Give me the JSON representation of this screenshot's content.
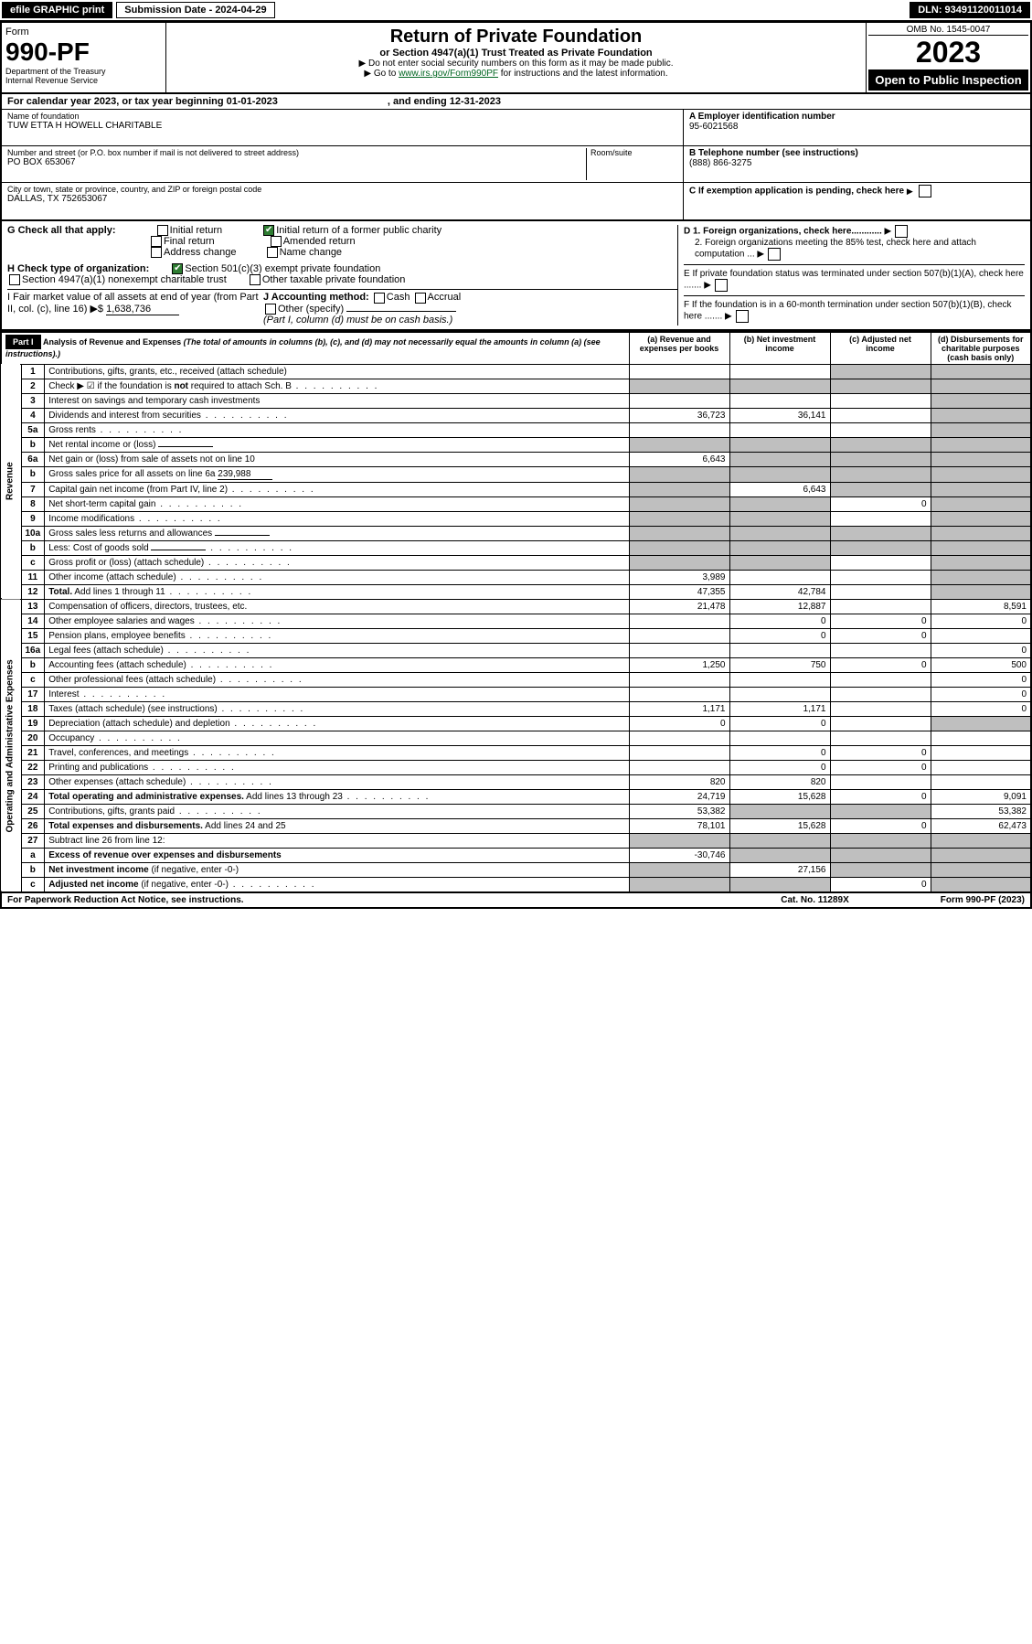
{
  "topbar": {
    "efile": "efile GRAPHIC print",
    "sub_lbl": "Submission Date - 2024-04-29",
    "dln": "DLN: 93491120011014"
  },
  "header": {
    "form_word": "Form",
    "form_no": "990-PF",
    "dept": "Department of the Treasury",
    "irs": "Internal Revenue Service",
    "title": "Return of Private Foundation",
    "subtitle": "or Section 4947(a)(1) Trust Treated as Private Foundation",
    "note1": "▶ Do not enter social security numbers on this form as it may be made public.",
    "note2_pre": "▶ Go to ",
    "note2_link": "www.irs.gov/Form990PF",
    "note2_post": " for instructions and the latest information.",
    "omb": "OMB No. 1545-0047",
    "year": "2023",
    "open": "Open to Public Inspection"
  },
  "calyear": {
    "text": "For calendar year 2023, or tax year beginning 01-01-2023",
    "ending": ", and ending 12-31-2023"
  },
  "idblock": {
    "name_lbl": "Name of foundation",
    "name": "TUW ETTA H HOWELL CHARITABLE",
    "addr_lbl": "Number and street (or P.O. box number if mail is not delivered to street address)",
    "addr": "PO BOX 653067",
    "room_lbl": "Room/suite",
    "city_lbl": "City or town, state or province, country, and ZIP or foreign postal code",
    "city": "DALLAS, TX  752653067",
    "a_lbl": "A Employer identification number",
    "a_val": "95-6021568",
    "b_lbl": "B Telephone number (see instructions)",
    "b_val": "(888) 866-3275",
    "c_lbl": "C If exemption application is pending, check here"
  },
  "checks": {
    "g_lbl": "G Check all that apply:",
    "g_opts": [
      "Initial return",
      "Initial return of a former public charity",
      "Final return",
      "Amended return",
      "Address change",
      "Name change"
    ],
    "h_lbl": "H Check type of organization:",
    "h1": "Section 501(c)(3) exempt private foundation",
    "h2": "Section 4947(a)(1) nonexempt charitable trust",
    "h3": "Other taxable private foundation",
    "i_lbl": "I Fair market value of all assets at end of year (from Part II, col. (c), line 16) ▶$",
    "i_val": "1,638,736",
    "j_lbl": "J Accounting method:",
    "j_opts": [
      "Cash",
      "Accrual"
    ],
    "j_other": "Other (specify)",
    "j_note": "(Part I, column (d) must be on cash basis.)",
    "d1": "D 1. Foreign organizations, check here............",
    "d2": "2. Foreign organizations meeting the 85% test, check here and attach computation ...",
    "e": "E  If private foundation status was terminated under section 507(b)(1)(A), check here .......",
    "f": "F  If the foundation is in a 60-month termination under section 507(b)(1)(B), check here .......",
    "arrow": "▶"
  },
  "part1": {
    "label": "Part I",
    "title": "Analysis of Revenue and Expenses",
    "title_note": " (The total of amounts in columns (b), (c), and (d) may not necessarily equal the amounts in column (a) (see instructions).)",
    "cols": {
      "a": "(a) Revenue and expenses per books",
      "b": "(b) Net investment income",
      "c": "(c) Adjusted net income",
      "d": "(d) Disbursements for charitable purposes (cash basis only)"
    }
  },
  "side": {
    "rev": "Revenue",
    "exp": "Operating and Administrative Expenses"
  },
  "rows": [
    {
      "n": "1",
      "t": "Contributions, gifts, grants, etc., received (attach schedule)",
      "a": "",
      "b": "",
      "c": "shade",
      "d": "shade"
    },
    {
      "n": "2",
      "t": "Check ▶ ☑ if the foundation is <b>not</b> required to attach Sch. B",
      "a": "shade",
      "b": "shade",
      "c": "shade",
      "d": "shade",
      "dots": 1
    },
    {
      "n": "3",
      "t": "Interest on savings and temporary cash investments",
      "a": "",
      "b": "",
      "c": "",
      "d": "shade"
    },
    {
      "n": "4",
      "t": "Dividends and interest from securities",
      "a": "36,723",
      "b": "36,141",
      "c": "",
      "d": "shade",
      "dots": 1
    },
    {
      "n": "5a",
      "t": "Gross rents",
      "a": "",
      "b": "",
      "c": "",
      "d": "shade",
      "dots": 1
    },
    {
      "n": "b",
      "t": "Net rental income or (loss)",
      "a": "shade",
      "b": "shade",
      "c": "shade",
      "d": "shade",
      "inline": 1
    },
    {
      "n": "6a",
      "t": "Net gain or (loss) from sale of assets not on line 10",
      "a": "6,643",
      "b": "shade",
      "c": "shade",
      "d": "shade"
    },
    {
      "n": "b",
      "t": "Gross sales price for all assets on line 6a",
      "a": "shade",
      "b": "shade",
      "c": "shade",
      "d": "shade",
      "inline": 1,
      "inlinev": "239,988"
    },
    {
      "n": "7",
      "t": "Capital gain net income (from Part IV, line 2)",
      "a": "shade",
      "b": "6,643",
      "c": "shade",
      "d": "shade",
      "dots": 1
    },
    {
      "n": "8",
      "t": "Net short-term capital gain",
      "a": "shade",
      "b": "shade",
      "c": "0",
      "d": "shade",
      "dots": 1
    },
    {
      "n": "9",
      "t": "Income modifications",
      "a": "shade",
      "b": "shade",
      "c": "",
      "d": "shade",
      "dots": 1
    },
    {
      "n": "10a",
      "t": "Gross sales less returns and allowances",
      "a": "shade",
      "b": "shade",
      "c": "shade",
      "d": "shade",
      "inline": 1
    },
    {
      "n": "b",
      "t": "Less: Cost of goods sold",
      "a": "shade",
      "b": "shade",
      "c": "shade",
      "d": "shade",
      "inline": 1,
      "dots": 1
    },
    {
      "n": "c",
      "t": "Gross profit or (loss) (attach schedule)",
      "a": "shade",
      "b": "shade",
      "c": "",
      "d": "shade",
      "dots": 1
    },
    {
      "n": "11",
      "t": "Other income (attach schedule)",
      "a": "3,989",
      "b": "",
      "c": "",
      "d": "shade",
      "dots": 1
    },
    {
      "n": "12",
      "t": "<b>Total.</b> Add lines 1 through 11",
      "a": "47,355",
      "b": "42,784",
      "c": "",
      "d": "shade",
      "dots": 1
    }
  ],
  "exp_rows": [
    {
      "n": "13",
      "t": "Compensation of officers, directors, trustees, etc.",
      "a": "21,478",
      "b": "12,887",
      "c": "",
      "d": "8,591"
    },
    {
      "n": "14",
      "t": "Other employee salaries and wages",
      "a": "",
      "b": "0",
      "c": "0",
      "d": "0",
      "dots": 1
    },
    {
      "n": "15",
      "t": "Pension plans, employee benefits",
      "a": "",
      "b": "0",
      "c": "0",
      "d": "",
      "dots": 1
    },
    {
      "n": "16a",
      "t": "Legal fees (attach schedule)",
      "a": "",
      "b": "",
      "c": "",
      "d": "0",
      "dots": 1
    },
    {
      "n": "b",
      "t": "Accounting fees (attach schedule)",
      "a": "1,250",
      "b": "750",
      "c": "0",
      "d": "500",
      "dots": 1
    },
    {
      "n": "c",
      "t": "Other professional fees (attach schedule)",
      "a": "",
      "b": "",
      "c": "",
      "d": "0",
      "dots": 1
    },
    {
      "n": "17",
      "t": "Interest",
      "a": "",
      "b": "",
      "c": "",
      "d": "0",
      "dots": 1
    },
    {
      "n": "18",
      "t": "Taxes (attach schedule) (see instructions)",
      "a": "1,171",
      "b": "1,171",
      "c": "",
      "d": "0",
      "dots": 1
    },
    {
      "n": "19",
      "t": "Depreciation (attach schedule) and depletion",
      "a": "0",
      "b": "0",
      "c": "",
      "d": "shade",
      "dots": 1
    },
    {
      "n": "20",
      "t": "Occupancy",
      "a": "",
      "b": "",
      "c": "",
      "d": "",
      "dots": 1
    },
    {
      "n": "21",
      "t": "Travel, conferences, and meetings",
      "a": "",
      "b": "0",
      "c": "0",
      "d": "",
      "dots": 1
    },
    {
      "n": "22",
      "t": "Printing and publications",
      "a": "",
      "b": "0",
      "c": "0",
      "d": "",
      "dots": 1
    },
    {
      "n": "23",
      "t": "Other expenses (attach schedule)",
      "a": "820",
      "b": "820",
      "c": "",
      "d": "",
      "dots": 1
    },
    {
      "n": "24",
      "t": "<b>Total operating and administrative expenses.</b> Add lines 13 through 23",
      "a": "24,719",
      "b": "15,628",
      "c": "0",
      "d": "9,091",
      "dots": 1
    },
    {
      "n": "25",
      "t": "Contributions, gifts, grants paid",
      "a": "53,382",
      "b": "shade",
      "c": "shade",
      "d": "53,382",
      "dots": 1
    },
    {
      "n": "26",
      "t": "<b>Total expenses and disbursements.</b> Add lines 24 and 25",
      "a": "78,101",
      "b": "15,628",
      "c": "0",
      "d": "62,473"
    },
    {
      "n": "27",
      "t": "Subtract line 26 from line 12:",
      "a": "shade",
      "b": "shade",
      "c": "shade",
      "d": "shade"
    },
    {
      "n": "a",
      "t": "<b>Excess of revenue over expenses and disbursements</b>",
      "a": "-30,746",
      "b": "shade",
      "c": "shade",
      "d": "shade"
    },
    {
      "n": "b",
      "t": "<b>Net investment income</b> (if negative, enter -0-)",
      "a": "shade",
      "b": "27,156",
      "c": "shade",
      "d": "shade"
    },
    {
      "n": "c",
      "t": "<b>Adjusted net income</b> (if negative, enter -0-)",
      "a": "shade",
      "b": "shade",
      "c": "0",
      "d": "shade",
      "dots": 1
    }
  ],
  "footer": {
    "left": "For Paperwork Reduction Act Notice, see instructions.",
    "mid": "Cat. No. 11289X",
    "right": "Form 990-PF (2023)"
  }
}
